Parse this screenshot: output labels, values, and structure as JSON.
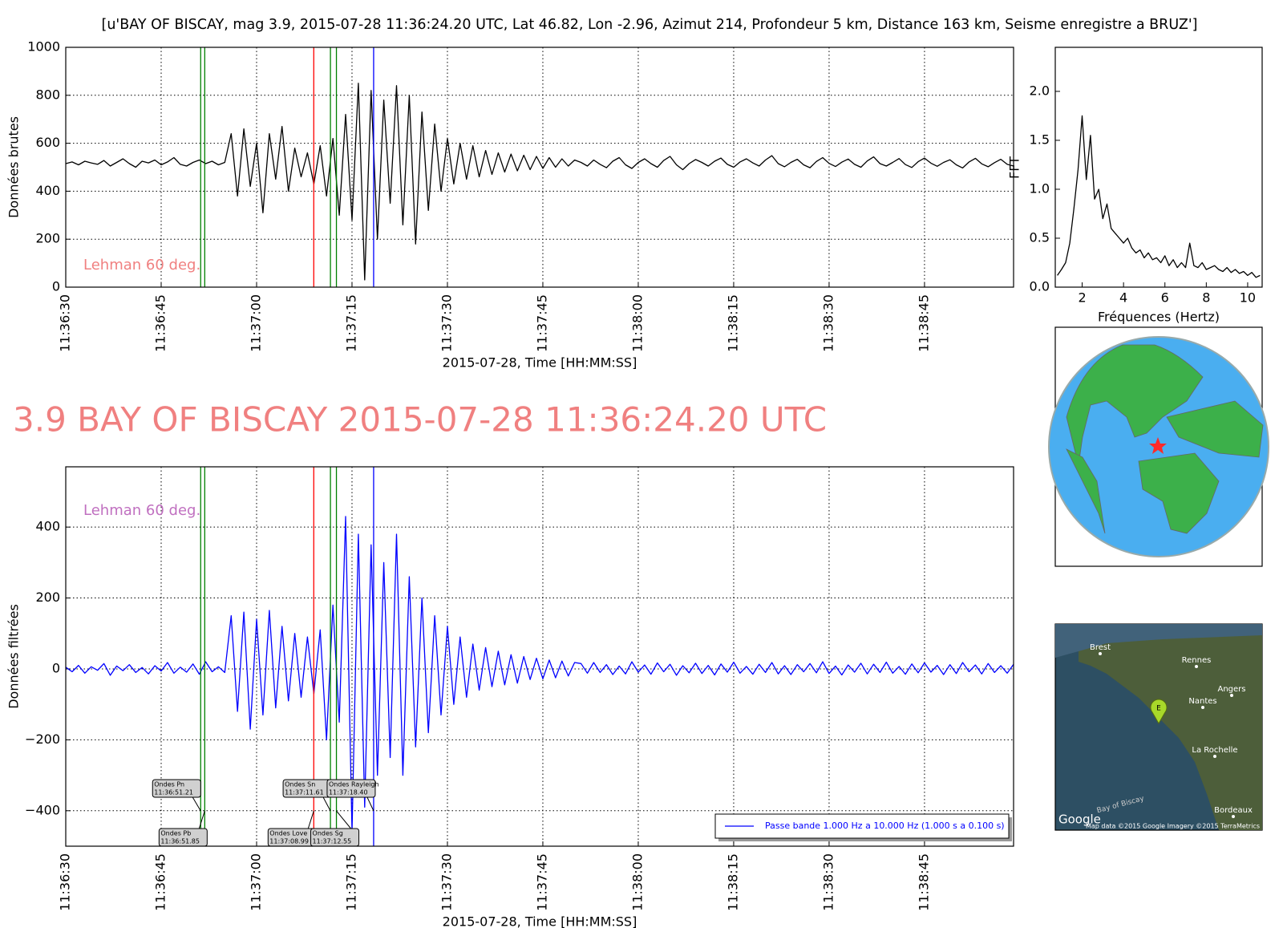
{
  "title": "[u'BAY OF BISCAY, mag 3.9, 2015-07-28 11:36:24.20 UTC, Lat 46.82, Lon -2.96, Azimut 214, Profondeur 5 km, Distance   163 km, Seisme enregistre a BRUZ']",
  "headline": "3.9 BAY OF BISCAY 2015-07-28 11:36:24.20 UTC",
  "phases": [
    {
      "name": "Ondes Pn",
      "time": "11:36:51.21",
      "x": 21.21,
      "color": "#008000"
    },
    {
      "name": "Ondes Pb",
      "time": "11:36:51.85",
      "x": 21.85,
      "color": "#008000"
    },
    {
      "name": "Ondes Love",
      "time": "11:37:08.99",
      "x": 38.99,
      "color": "#ff0000"
    },
    {
      "name": "Ondes Sn",
      "time": "11:37:11.61",
      "x": 41.61,
      "color": "#008000"
    },
    {
      "name": "Ondes Sg",
      "time": "11:37:12.55",
      "x": 42.55,
      "color": "#008000"
    },
    {
      "name": "Ondes Rayleigh",
      "time": "11:37:18.40",
      "x": 48.4,
      "color": "#0000ff"
    }
  ],
  "chart_data": [
    {
      "type": "line",
      "xlabel": "2015-07-28, Time [HH:MM:SS]",
      "ylabel": "Données brutes",
      "annotation": "Lehman 60 deg.",
      "annotation_color": "#f08080",
      "grid": true,
      "xtick_rotation": 90,
      "phase_lines": true,
      "xlim": [
        0,
        149
      ],
      "ylim": [
        0,
        1000
      ],
      "xticks": [
        {
          "value": 0,
          "label": "11:36:30"
        },
        {
          "value": 15,
          "label": "11:36:45"
        },
        {
          "value": 30,
          "label": "11:37:00"
        },
        {
          "value": 45,
          "label": "11:37:15"
        },
        {
          "value": 60,
          "label": "11:37:30"
        },
        {
          "value": 75,
          "label": "11:37:45"
        },
        {
          "value": 90,
          "label": "11:38:00"
        },
        {
          "value": 105,
          "label": "11:38:15"
        },
        {
          "value": 120,
          "label": "11:38:30"
        },
        {
          "value": 135,
          "label": "11:38:45"
        }
      ],
      "yticks": [
        0,
        200,
        400,
        600,
        800,
        1000
      ],
      "x": [
        0,
        1,
        2,
        3,
        4,
        5,
        6,
        7,
        8,
        9,
        10,
        11,
        12,
        13,
        14,
        15,
        16,
        17,
        18,
        19,
        20,
        21,
        22,
        23,
        24,
        25,
        26,
        27,
        28,
        29,
        30,
        31,
        32,
        33,
        34,
        35,
        36,
        37,
        38,
        39,
        40,
        41,
        42,
        43,
        44,
        45,
        46,
        47,
        48,
        49,
        50,
        51,
        52,
        53,
        54,
        55,
        56,
        57,
        58,
        59,
        60,
        61,
        62,
        63,
        64,
        65,
        66,
        67,
        68,
        69,
        70,
        71,
        72,
        73,
        74,
        75,
        76,
        77,
        78,
        79,
        80,
        81,
        82,
        83,
        84,
        85,
        86,
        87,
        88,
        89,
        90,
        91,
        92,
        93,
        94,
        95,
        96,
        97,
        98,
        99,
        100,
        101,
        102,
        103,
        104,
        105,
        106,
        107,
        108,
        109,
        110,
        111,
        112,
        113,
        114,
        115,
        116,
        117,
        118,
        119,
        120,
        121,
        122,
        123,
        124,
        125,
        126,
        127,
        128,
        129,
        130,
        131,
        132,
        133,
        134,
        135,
        136,
        137,
        138,
        139,
        140,
        141,
        142,
        143,
        144,
        145,
        146,
        147,
        148,
        149
      ],
      "series": [
        {
          "color": "#000000",
          "values": [
            515,
            522,
            510,
            525,
            518,
            512,
            528,
            505,
            520,
            535,
            515,
            500,
            525,
            518,
            530,
            510,
            522,
            540,
            512,
            505,
            520,
            530,
            515,
            525,
            510,
            520,
            640,
            380,
            660,
            420,
            600,
            310,
            640,
            450,
            670,
            400,
            580,
            460,
            560,
            430,
            590,
            380,
            620,
            300,
            720,
            280,
            850,
            30,
            820,
            200,
            780,
            350,
            840,
            260,
            800,
            180,
            730,
            320,
            680,
            400,
            620,
            430,
            600,
            450,
            590,
            460,
            570,
            470,
            560,
            480,
            555,
            485,
            550,
            490,
            545,
            495,
            540,
            500,
            535,
            505,
            530,
            520,
            505,
            530,
            512,
            498,
            525,
            540,
            510,
            495,
            520,
            535,
            515,
            500,
            528,
            545,
            510,
            490,
            515,
            532,
            520,
            505,
            525,
            538,
            512,
            500,
            522,
            535,
            518,
            505,
            530,
            548,
            515,
            502,
            520,
            533,
            510,
            498,
            524,
            540,
            516,
            503,
            521,
            534,
            512,
            500,
            526,
            543,
            515,
            505,
            520,
            536,
            511,
            499,
            523,
            538,
            517,
            504,
            520,
            531,
            510,
            497,
            522,
            537,
            514,
            502,
            519,
            533,
            512,
            505
          ]
        }
      ]
    },
    {
      "type": "line",
      "xlabel": "Fréquences (Hertz)",
      "ylabel": "FFT",
      "grid": false,
      "xtick_rotation": 0,
      "xlim": [
        0.7,
        10.7
      ],
      "ylim": [
        0,
        2.45
      ],
      "xticks": [
        2,
        4,
        6,
        8,
        10
      ],
      "yticks": [
        {
          "value": 0,
          "label": "0.0"
        },
        {
          "value": 0.5,
          "label": "0.5"
        },
        {
          "value": 1,
          "label": "1.0"
        },
        {
          "value": 1.5,
          "label": "1.5"
        },
        {
          "value": 2,
          "label": "2.0"
        }
      ],
      "x": [
        0.8,
        1.0,
        1.2,
        1.4,
        1.6,
        1.8,
        2.0,
        2.2,
        2.4,
        2.6,
        2.8,
        3.0,
        3.2,
        3.4,
        3.6,
        3.8,
        4.0,
        4.2,
        4.4,
        4.6,
        4.8,
        5.0,
        5.2,
        5.4,
        5.6,
        5.8,
        6.0,
        6.2,
        6.4,
        6.6,
        6.8,
        7.0,
        7.2,
        7.4,
        7.6,
        7.8,
        8.0,
        8.2,
        8.4,
        8.6,
        8.8,
        9.0,
        9.2,
        9.4,
        9.6,
        9.8,
        10.0,
        10.2,
        10.4,
        10.6
      ],
      "series": [
        {
          "color": "#000000",
          "values": [
            0.12,
            0.18,
            0.25,
            0.45,
            0.8,
            1.2,
            1.75,
            1.1,
            1.55,
            0.9,
            1.0,
            0.7,
            0.85,
            0.6,
            0.55,
            0.5,
            0.45,
            0.5,
            0.4,
            0.35,
            0.38,
            0.3,
            0.35,
            0.28,
            0.3,
            0.25,
            0.32,
            0.22,
            0.28,
            0.2,
            0.25,
            0.2,
            0.45,
            0.22,
            0.2,
            0.25,
            0.18,
            0.2,
            0.22,
            0.18,
            0.16,
            0.2,
            0.15,
            0.18,
            0.14,
            0.16,
            0.12,
            0.15,
            0.1,
            0.12
          ]
        }
      ]
    },
    {
      "type": "line",
      "xlabel": "2015-07-28, Time [HH:MM:SS]",
      "ylabel": "Données filtrées",
      "annotation": "Lehman 60 deg.",
      "annotation_color": "#c070c0",
      "grid": true,
      "xtick_rotation": 90,
      "phase_lines": true,
      "phase_labels": true,
      "legend": "lower right",
      "xlim": [
        0,
        149
      ],
      "ylim": [
        -500,
        570
      ],
      "xticks": [
        {
          "value": 0,
          "label": "11:36:30"
        },
        {
          "value": 15,
          "label": "11:36:45"
        },
        {
          "value": 30,
          "label": "11:37:00"
        },
        {
          "value": 45,
          "label": "11:37:15"
        },
        {
          "value": 60,
          "label": "11:37:30"
        },
        {
          "value": 75,
          "label": "11:37:45"
        },
        {
          "value": 90,
          "label": "11:38:00"
        },
        {
          "value": 105,
          "label": "11:38:15"
        },
        {
          "value": 120,
          "label": "11:38:30"
        },
        {
          "value": 135,
          "label": "11:38:45"
        }
      ],
      "yticks": [
        {
          "value": -400,
          "label": "−400"
        },
        {
          "value": -200,
          "label": "−200"
        },
        0,
        200,
        400
      ],
      "x": [
        0,
        1,
        2,
        3,
        4,
        5,
        6,
        7,
        8,
        9,
        10,
        11,
        12,
        13,
        14,
        15,
        16,
        17,
        18,
        19,
        20,
        21,
        22,
        23,
        24,
        25,
        26,
        27,
        28,
        29,
        30,
        31,
        32,
        33,
        34,
        35,
        36,
        37,
        38,
        39,
        40,
        41,
        42,
        43,
        44,
        45,
        46,
        47,
        48,
        49,
        50,
        51,
        52,
        53,
        54,
        55,
        56,
        57,
        58,
        59,
        60,
        61,
        62,
        63,
        64,
        65,
        66,
        67,
        68,
        69,
        70,
        71,
        72,
        73,
        74,
        75,
        76,
        77,
        78,
        79,
        80,
        81,
        82,
        83,
        84,
        85,
        86,
        87,
        88,
        89,
        90,
        91,
        92,
        93,
        94,
        95,
        96,
        97,
        98,
        99,
        100,
        101,
        102,
        103,
        104,
        105,
        106,
        107,
        108,
        109,
        110,
        111,
        112,
        113,
        114,
        115,
        116,
        117,
        118,
        119,
        120,
        121,
        122,
        123,
        124,
        125,
        126,
        127,
        128,
        129,
        130,
        131,
        132,
        133,
        134,
        135,
        136,
        137,
        138,
        139,
        140,
        141,
        142,
        143,
        144,
        145,
        146,
        147,
        148,
        149
      ],
      "series": [
        {
          "name": "Passe bande 1.000 Hz a 10.000 Hz (1.000 s a 0.100 s)",
          "color": "#0000ff",
          "values": [
            5,
            -8,
            10,
            -12,
            6,
            -4,
            15,
            -18,
            8,
            -5,
            12,
            -10,
            4,
            -14,
            9,
            -6,
            18,
            -12,
            5,
            -9,
            14,
            -15,
            20,
            -8,
            6,
            -10,
            150,
            -120,
            160,
            -170,
            140,
            -130,
            165,
            -110,
            120,
            -90,
            100,
            -80,
            90,
            -70,
            110,
            -200,
            180,
            -150,
            430,
            -460,
            380,
            -390,
            350,
            -300,
            300,
            -250,
            380,
            -300,
            260,
            -220,
            200,
            -180,
            150,
            -130,
            120,
            -100,
            90,
            -80,
            70,
            -60,
            60,
            -50,
            50,
            -45,
            40,
            -40,
            35,
            -30,
            30,
            -28,
            25,
            -25,
            22,
            -20,
            18,
            15,
            -12,
            18,
            -10,
            12,
            -16,
            8,
            -14,
            20,
            -9,
            11,
            -15,
            17,
            -8,
            13,
            -18,
            9,
            -11,
            16,
            -13,
            10,
            -17,
            14,
            -9,
            19,
            -12,
            7,
            -15,
            13,
            -10,
            18,
            -14,
            9,
            -16,
            12,
            -8,
            15,
            -11,
            20,
            -13,
            8,
            -17,
            11,
            -9,
            16,
            -14,
            13,
            -10,
            19,
            -12,
            7,
            -15,
            14,
            -11,
            17,
            -9,
            10,
            -16,
            12,
            -13,
            18,
            -8,
            11,
            -14,
            15,
            -10,
            9,
            -12,
            13
          ]
        }
      ]
    }
  ],
  "map": {
    "cities": [
      "Brest",
      "Rennes",
      "Nantes",
      "Angers",
      "La Rochelle",
      "Bordeaux"
    ],
    "sea": "Bay of Biscay",
    "logo": "Google",
    "attribution": "Map data ©2015 Google  Imagery ©2015 TerraMetrics",
    "pin": "E"
  }
}
